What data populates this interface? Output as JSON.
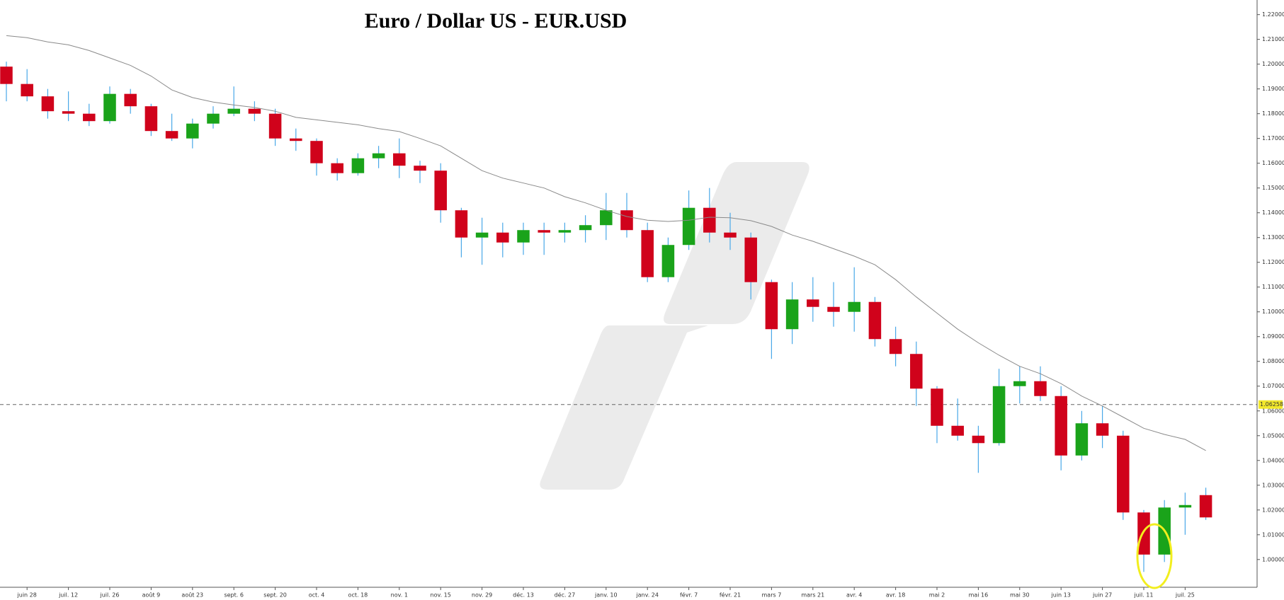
{
  "chart_data": {
    "type": "candlestick",
    "title": "Euro / Dollar US - EUR.USD",
    "categories": [
      null,
      "juin 28",
      null,
      "juil. 12",
      null,
      "juil. 26",
      null,
      "août 9",
      null,
      "août 23",
      null,
      "sept. 6",
      null,
      "sept. 20",
      null,
      "oct. 4",
      null,
      "oct. 18",
      null,
      "nov. 1",
      null,
      "nov. 15",
      null,
      "nov. 29",
      null,
      "déc. 13",
      null,
      "déc. 27",
      null,
      "janv. 10",
      null,
      "janv. 24",
      null,
      "févr. 7",
      null,
      "févr. 21",
      null,
      "mars 7",
      null,
      "mars 21",
      null,
      "avr. 4",
      null,
      "avr. 18",
      null,
      "mai 2",
      null,
      "mai 16",
      null,
      "mai 30",
      null,
      "juin 13",
      null,
      "juin 27",
      null,
      "juil. 11",
      null,
      "juil. 25",
      null
    ],
    "open": [
      1.199,
      1.192,
      1.187,
      1.181,
      1.18,
      1.177,
      1.188,
      1.183,
      1.173,
      1.17,
      1.176,
      1.18,
      1.182,
      1.18,
      1.17,
      1.169,
      1.16,
      1.156,
      1.162,
      1.164,
      1.159,
      1.157,
      1.141,
      1.13,
      1.132,
      1.128,
      1.133,
      1.132,
      1.133,
      1.135,
      1.141,
      1.133,
      1.114,
      1.127,
      1.142,
      1.132,
      1.13,
      1.112,
      1.093,
      1.105,
      1.102,
      1.1,
      1.104,
      1.089,
      1.083,
      1.069,
      1.054,
      1.05,
      1.047,
      1.07,
      1.072,
      1.066,
      1.042,
      1.055,
      1.05,
      1.019,
      1.002,
      1.021,
      1.026
    ],
    "high": [
      1.201,
      1.198,
      1.19,
      1.189,
      1.184,
      1.191,
      1.19,
      1.184,
      1.18,
      1.178,
      1.183,
      1.191,
      1.185,
      1.182,
      1.174,
      1.17,
      1.162,
      1.164,
      1.167,
      1.17,
      1.161,
      1.16,
      1.142,
      1.138,
      1.136,
      1.136,
      1.136,
      1.136,
      1.139,
      1.148,
      1.148,
      1.136,
      1.13,
      1.149,
      1.15,
      1.14,
      1.132,
      1.113,
      1.112,
      1.114,
      1.112,
      1.118,
      1.106,
      1.094,
      1.088,
      1.07,
      1.065,
      1.054,
      1.077,
      1.078,
      1.078,
      1.07,
      1.06,
      1.062,
      1.052,
      1.02,
      1.024,
      1.027,
      1.029
    ],
    "low": [
      1.185,
      1.185,
      1.178,
      1.177,
      1.175,
      1.176,
      1.18,
      1.171,
      1.169,
      1.166,
      1.174,
      1.179,
      1.177,
      1.167,
      1.165,
      1.155,
      1.153,
      1.155,
      1.158,
      1.154,
      1.152,
      1.136,
      1.122,
      1.119,
      1.122,
      1.123,
      1.123,
      1.128,
      1.128,
      1.129,
      1.13,
      1.112,
      1.112,
      1.125,
      1.128,
      1.125,
      1.105,
      1.081,
      1.087,
      1.096,
      1.094,
      1.092,
      1.086,
      1.078,
      1.062,
      1.047,
      1.048,
      1.035,
      1.046,
      1.063,
      1.064,
      1.036,
      1.04,
      1.045,
      1.016,
      0.995,
      0.999,
      1.01,
      1.016
    ],
    "close": [
      1.192,
      1.187,
      1.181,
      1.18,
      1.177,
      1.188,
      1.183,
      1.173,
      1.17,
      1.176,
      1.18,
      1.182,
      1.18,
      1.17,
      1.169,
      1.16,
      1.156,
      1.162,
      1.164,
      1.159,
      1.157,
      1.141,
      1.13,
      1.132,
      1.128,
      1.133,
      1.132,
      1.133,
      1.135,
      1.141,
      1.133,
      1.114,
      1.127,
      1.142,
      1.132,
      1.13,
      1.112,
      1.093,
      1.105,
      1.102,
      1.1,
      1.104,
      1.089,
      1.083,
      1.069,
      1.054,
      1.05,
      1.047,
      1.07,
      1.072,
      1.066,
      1.042,
      1.055,
      1.05,
      1.019,
      1.002,
      1.021,
      1.022,
      1.017
    ],
    "up_color": "#1aa31a",
    "down_color": "#d0021b",
    "wick_color": "#4aa8e8",
    "moving_average": {
      "color": "#8a8a8a",
      "values": [
        1.2115,
        1.2107,
        1.209,
        1.2078,
        1.2055,
        1.2025,
        1.1995,
        1.1952,
        1.1896,
        1.1865,
        1.1847,
        1.1835,
        1.1825,
        1.181,
        1.1785,
        1.1775,
        1.1765,
        1.1755,
        1.174,
        1.1728,
        1.17,
        1.167,
        1.162,
        1.157,
        1.154,
        1.152,
        1.15,
        1.1465,
        1.144,
        1.141,
        1.1385,
        1.137,
        1.1365,
        1.137,
        1.1382,
        1.138,
        1.1368,
        1.1345,
        1.131,
        1.1285,
        1.1255,
        1.1225,
        1.119,
        1.113,
        1.106,
        1.0995,
        1.093,
        1.0875,
        1.0825,
        1.078,
        1.075,
        1.071,
        1.066,
        1.062,
        1.0575,
        1.053,
        1.0505,
        1.0485,
        1.044
      ]
    },
    "last_price": 1.06258,
    "last_price_color": "#f2e82c",
    "ylim": [
      0.9888,
      1.2259
    ],
    "yticks": [
      {
        "value": 1.0,
        "label": "1.00000"
      },
      {
        "value": 1.01,
        "label": "1.01000"
      },
      {
        "value": 1.02,
        "label": "1.02000"
      },
      {
        "value": 1.03,
        "label": "1.03000"
      },
      {
        "value": 1.04,
        "label": "1.04000"
      },
      {
        "value": 1.05,
        "label": "1.05000"
      },
      {
        "value": 1.06,
        "label": "1.06000"
      },
      {
        "value": 1.07,
        "label": "1.07000"
      },
      {
        "value": 1.08,
        "label": "1.08000"
      },
      {
        "value": 1.09,
        "label": "1.09000"
      },
      {
        "value": 1.1,
        "label": "1.10000"
      },
      {
        "value": 1.11,
        "label": "1.11000"
      },
      {
        "value": 1.12,
        "label": "1.12000"
      },
      {
        "value": 1.13,
        "label": "1.13000"
      },
      {
        "value": 1.14,
        "label": "1.14000"
      },
      {
        "value": 1.15,
        "label": "1.15000"
      },
      {
        "value": 1.16,
        "label": "1.16000"
      },
      {
        "value": 1.17,
        "label": "1.17000"
      },
      {
        "value": 1.18,
        "label": "1.18000"
      },
      {
        "value": 1.19,
        "label": "1.19000"
      },
      {
        "value": 1.2,
        "label": "1.20000"
      },
      {
        "value": 1.21,
        "label": "1.21000"
      },
      {
        "value": 1.22,
        "label": "1.22000"
      }
    ]
  }
}
